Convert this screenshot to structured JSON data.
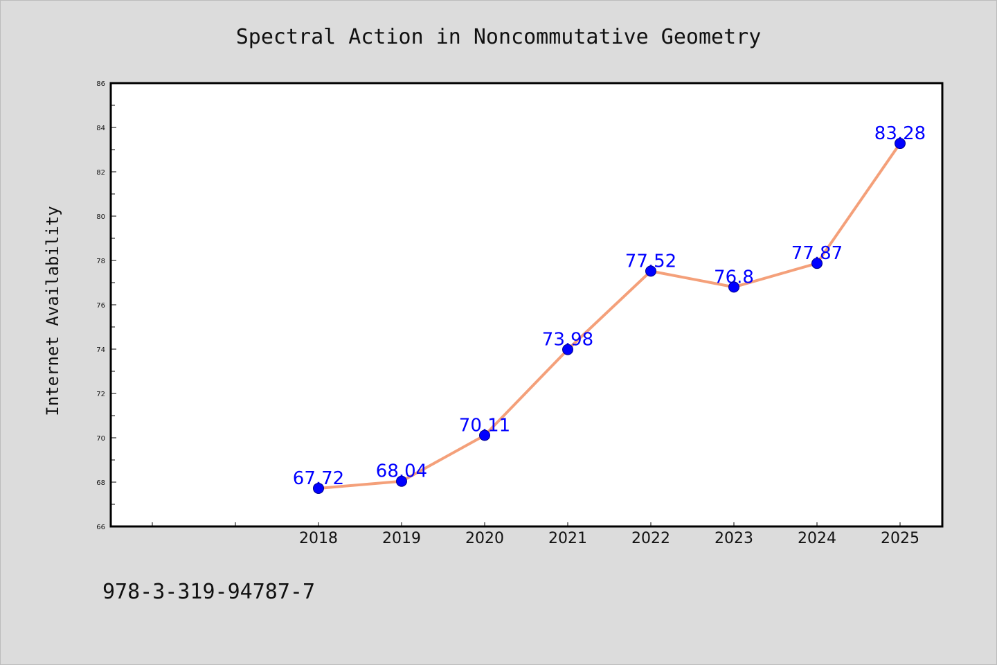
{
  "chart_data": {
    "type": "line",
    "title": "Spectral Action in Noncommutative Geometry",
    "xlabel": "",
    "ylabel": "Internet Availability",
    "categories": [
      "2018",
      "2019",
      "2020",
      "2021",
      "2022",
      "2023",
      "2024",
      "2025"
    ],
    "values": [
      67.72,
      68.04,
      70.11,
      73.98,
      77.52,
      76.8,
      77.87,
      83.28
    ],
    "data_labels": [
      "67.72",
      "68.04",
      "70.11",
      "73.98",
      "77.52",
      "76.8",
      "77.87",
      "83.28"
    ],
    "ylim": [
      66,
      86
    ],
    "yticks": [
      "66",
      "68",
      "70",
      "72",
      "74",
      "76",
      "78",
      "80",
      "82",
      "84",
      "86"
    ],
    "grid": false,
    "legend": "none",
    "colors": {
      "line": "#f4a07a",
      "marker": "#0000ff",
      "marker_edge": "#00008b",
      "data_label": "#0000ff",
      "plot_bg": "#ffffff",
      "page_bg": "#dcdcdc"
    }
  },
  "footer_text": "978-3-319-94787-7"
}
